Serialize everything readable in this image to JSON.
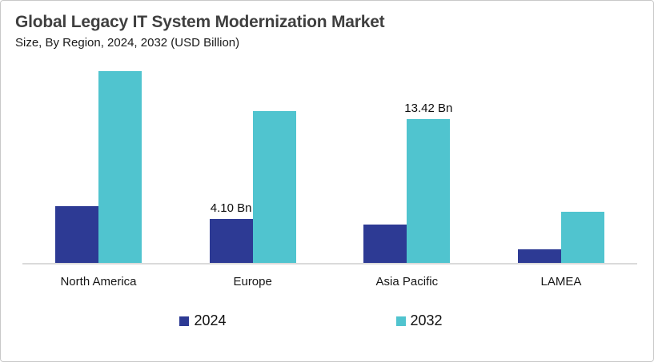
{
  "chart_data": {
    "type": "bar",
    "title": "Global Legacy IT System Modernization Market",
    "subtitle": "Size, By Region, 2024, 2032 (USD Billion)",
    "unit": "USD Billion",
    "categories": [
      "North America",
      "Europe",
      "Asia Pacific",
      "LAMEA"
    ],
    "series": [
      {
        "name": "2024",
        "color": "#2d3a94",
        "values": [
          5.3,
          4.1,
          3.6,
          1.25
        ],
        "data_labels": [
          "",
          "4.10 Bn",
          "",
          ""
        ]
      },
      {
        "name": "2032",
        "color": "#50c4cf",
        "values": [
          17.9,
          14.2,
          13.42,
          4.8
        ],
        "data_labels": [
          "",
          "",
          "13.42 Bn",
          ""
        ]
      }
    ],
    "ylim": [
      0,
      18.5
    ],
    "y_axis_visible": false,
    "gridlines": false,
    "baseline_color": "#dadada",
    "legend_position": "bottom"
  }
}
